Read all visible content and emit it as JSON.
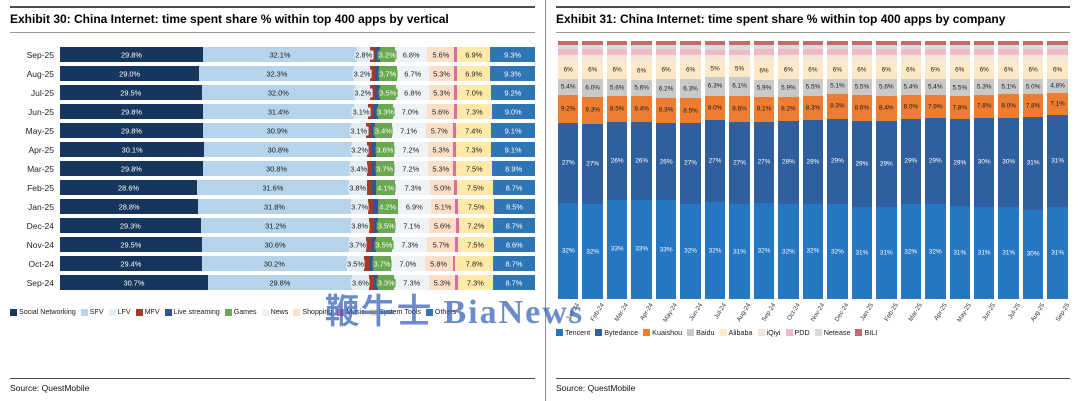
{
  "watermark": "鞭牛士 BiaNews",
  "left_panel": {
    "title": "Exhibit 30: China Internet: time spent share % within top 400 apps by vertical",
    "source": "Source: QuestMobile",
    "chart_data": {
      "type": "bar",
      "orientation": "horizontal",
      "stacked": true,
      "grid": false,
      "legend_position": "bottom",
      "label_threshold": 2.5,
      "categories": [
        "Sep-25",
        "Aug-25",
        "Jul-25",
        "Jun-25",
        "May-25",
        "Apr-25",
        "Mar-25",
        "Feb-25",
        "Jan-25",
        "Dec-24",
        "Nov-24",
        "Oct-24",
        "Sep-24"
      ],
      "series": [
        {
          "name": "Social Networking",
          "color": "#17365d",
          "text_color": "#ffffff",
          "values": [
            29.8,
            29.0,
            29.5,
            29.8,
            29.8,
            30.1,
            29.8,
            28.6,
            28.8,
            29.3,
            29.5,
            29.4,
            30.7
          ]
        },
        {
          "name": "SFV",
          "color": "#b5d3ea",
          "text_color": "#1a1a1a",
          "values": [
            32.1,
            32.3,
            32.0,
            31.4,
            30.9,
            30.8,
            30.8,
            31.6,
            31.8,
            31.2,
            30.6,
            30.2,
            29.8
          ]
        },
        {
          "name": "LFV",
          "color": "#e3edf6",
          "text_color": "#1a1a1a",
          "values": [
            2.8,
            3.2,
            3.2,
            3.1,
            3.1,
            3.2,
            3.4,
            3.8,
            3.7,
            3.8,
            3.7,
            3.5,
            3.6
          ]
        },
        {
          "name": "MFV",
          "color": "#a63a28",
          "text_color": "#ffffff",
          "values": [
            1.0,
            1.0,
            1.0,
            1.0,
            1.0,
            1.0,
            1.0,
            1.0,
            1.0,
            1.0,
            1.0,
            1.0,
            1.0
          ]
        },
        {
          "name": "Live streaming",
          "color": "#2f5597",
          "text_color": "#ffffff",
          "values": [
            0.9,
            0.9,
            0.9,
            0.9,
            0.9,
            0.9,
            0.9,
            0.9,
            0.9,
            0.9,
            0.9,
            0.9,
            0.9
          ]
        },
        {
          "name": "Games",
          "color": "#6aa84f",
          "text_color": "#ffffff",
          "values": [
            3.2,
            3.7,
            3.5,
            3.3,
            3.4,
            3.6,
            3.7,
            4.1,
            4.2,
            3.5,
            3.5,
            3.7,
            3.3
          ]
        },
        {
          "name": "News",
          "color": "#eff3f8",
          "text_color": "#1a1a1a",
          "values": [
            6.8,
            6.7,
            6.8,
            7.0,
            7.1,
            7.2,
            7.2,
            7.3,
            6.9,
            7.1,
            7.3,
            7.0,
            7.3
          ]
        },
        {
          "name": "Shopping",
          "color": "#fcdfc9",
          "text_color": "#1a1a1a",
          "values": [
            5.6,
            5.3,
            5.3,
            5.6,
            5.7,
            5.3,
            5.3,
            5.0,
            5.1,
            5.6,
            5.7,
            5.8,
            5.3
          ]
        },
        {
          "name": "Music",
          "color": "#e06ba4",
          "text_color": "#ffffff",
          "values": [
            0.6,
            0.6,
            0.6,
            0.6,
            0.6,
            0.6,
            0.6,
            0.6,
            0.6,
            0.6,
            0.6,
            0.6,
            0.6
          ]
        },
        {
          "name": "System Tools",
          "color": "#ffe9a8",
          "text_color": "#1a1a1a",
          "values": [
            6.9,
            6.9,
            7.0,
            7.3,
            7.4,
            7.3,
            7.5,
            7.5,
            7.5,
            7.2,
            7.5,
            7.8,
            7.3
          ]
        },
        {
          "name": "Others",
          "color": "#2e75b6",
          "text_color": "#ffffff",
          "values": [
            9.3,
            9.3,
            9.2,
            9.0,
            9.1,
            9.1,
            8.9,
            8.7,
            8.5,
            8.7,
            8.6,
            8.7,
            8.7
          ]
        }
      ]
    }
  },
  "right_panel": {
    "title": "Exhibit 31: China Internet: time spent share % within top 400 apps by company",
    "source": "Source: QuestMobile",
    "chart_data": {
      "type": "bar",
      "orientation": "vertical",
      "stacked": true,
      "grid": false,
      "legend_position": "bottom",
      "categories": [
        "Jan-24",
        "Feb-24",
        "Mar-24",
        "Apr-24",
        "May-24",
        "Jun-24",
        "Jul-24",
        "Aug-24",
        "Sep-24",
        "Oct-24",
        "Nov-24",
        "Dec-24",
        "Jan-25",
        "Feb-25",
        "Mar-25",
        "Apr-25",
        "May-25",
        "Jun-25",
        "Jul-25",
        "Aug-25",
        "Sep-25"
      ],
      "series": [
        {
          "name": "Tencent",
          "color": "#2577c4",
          "text_color": "#ffffff",
          "show_labels": true,
          "decimals": 0,
          "values": [
            32,
            32,
            33,
            33,
            33,
            32,
            32,
            31,
            32,
            32,
            32,
            32,
            31,
            31,
            32,
            32,
            31,
            31,
            31,
            30,
            31
          ]
        },
        {
          "name": "Bytedance",
          "color": "#2f5f9e",
          "text_color": "#ffffff",
          "show_labels": true,
          "decimals": 0,
          "values": [
            27,
            27,
            26,
            26,
            26,
            27,
            27,
            27,
            27,
            28,
            28,
            29,
            29,
            29,
            29,
            29,
            29,
            30,
            30,
            31,
            31
          ]
        },
        {
          "name": "Kuaishou",
          "color": "#ed7d31",
          "text_color": "#1a1a1a",
          "show_labels": true,
          "decimals": 1,
          "values": [
            9.2,
            9.3,
            8.5,
            8.4,
            8.3,
            8.5,
            8.0,
            8.6,
            8.1,
            8.2,
            8.3,
            8.3,
            8.6,
            8.4,
            8.0,
            7.9,
            7.8,
            7.8,
            8.0,
            7.8,
            7.1
          ]
        },
        {
          "name": "Baidu",
          "color": "#c9c9c9",
          "text_color": "#1a1a1a",
          "show_labels": true,
          "decimals": 1,
          "values": [
            5.4,
            6.0,
            5.6,
            5.6,
            6.2,
            6.3,
            6.3,
            6.1,
            5.9,
            5.9,
            5.5,
            5.1,
            5.5,
            5.6,
            5.4,
            5.4,
            5.5,
            5.3,
            5.1,
            5.0,
            4.8
          ]
        },
        {
          "name": "Alibaba",
          "color": "#fde9c8",
          "text_color": "#1a1a1a",
          "show_labels": true,
          "decimals": 0,
          "values": [
            6,
            6,
            6,
            6,
            6,
            6,
            5,
            5,
            6,
            6,
            6,
            6,
            6,
            6,
            6,
            6,
            6,
            6,
            6,
            6,
            6
          ]
        },
        {
          "name": "iQiyi",
          "color": "#f1e6d8",
          "text_color": "#1a1a1a",
          "show_labels": false,
          "decimals": 1,
          "values": [
            2.2,
            2.2,
            2.2,
            2.2,
            2.2,
            2.2,
            2.2,
            2.2,
            2.2,
            2.2,
            2.2,
            2.2,
            2.2,
            2.2,
            2.2,
            2.2,
            2.2,
            2.2,
            2.2,
            2.2,
            2.2
          ]
        },
        {
          "name": "PDD",
          "color": "#f2b8c6",
          "text_color": "#1a1a1a",
          "show_labels": false,
          "decimals": 1,
          "values": [
            1.8,
            1.8,
            1.8,
            1.8,
            1.8,
            1.8,
            1.8,
            1.8,
            1.8,
            1.8,
            1.8,
            1.8,
            1.8,
            1.8,
            1.8,
            1.8,
            1.8,
            1.8,
            1.8,
            1.8,
            1.8
          ]
        },
        {
          "name": "Netease",
          "color": "#d9d9d9",
          "text_color": "#1a1a1a",
          "show_labels": false,
          "decimals": 1,
          "values": [
            1.5,
            1.5,
            1.5,
            1.5,
            1.5,
            1.5,
            1.5,
            1.5,
            1.5,
            1.5,
            1.5,
            1.5,
            1.5,
            1.5,
            1.5,
            1.5,
            1.5,
            1.5,
            1.5,
            1.5,
            1.5
          ]
        },
        {
          "name": "BILI",
          "color": "#c66a6a",
          "text_color": "#ffffff",
          "show_labels": false,
          "decimals": 1,
          "values": [
            1.3,
            1.3,
            1.3,
            1.3,
            1.3,
            1.3,
            1.3,
            1.3,
            1.3,
            1.3,
            1.3,
            1.3,
            1.3,
            1.3,
            1.3,
            1.3,
            1.3,
            1.3,
            1.3,
            1.3,
            1.3
          ]
        }
      ]
    }
  }
}
